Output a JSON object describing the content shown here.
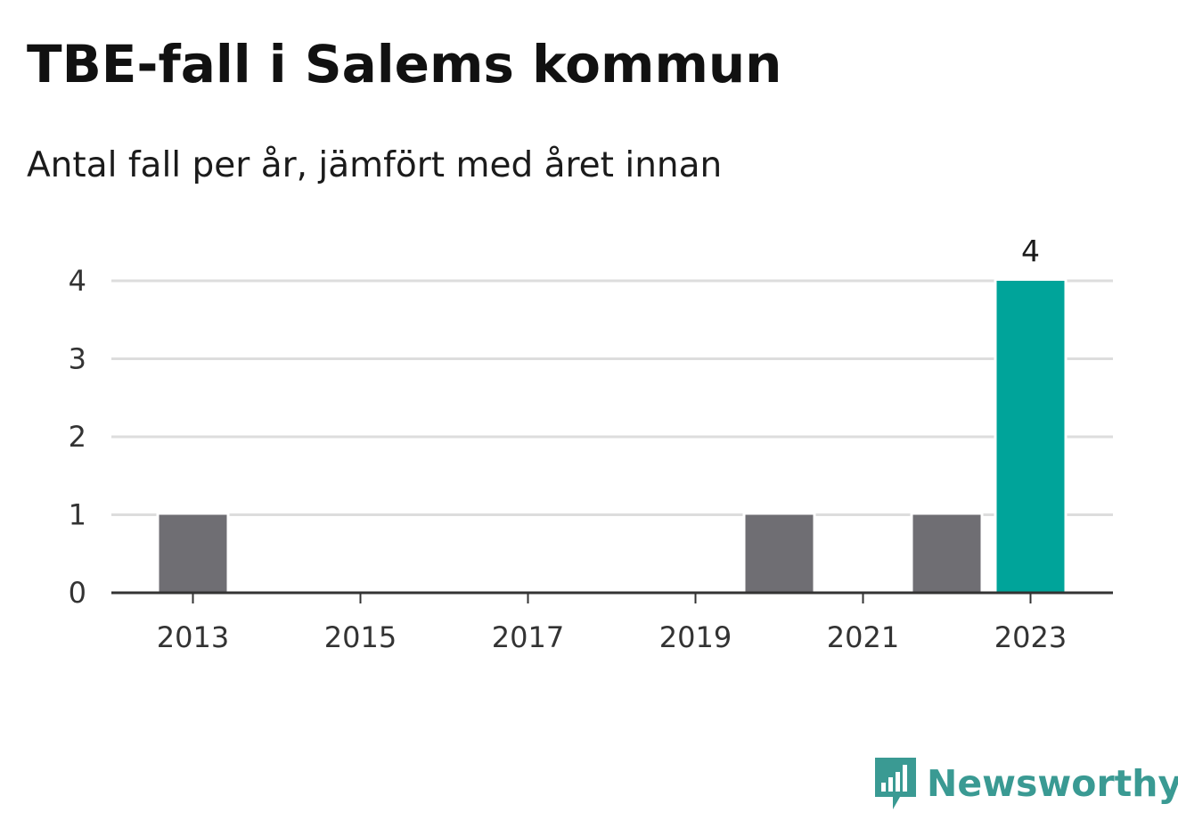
{
  "title": "TBE-fall i Salems kommun",
  "subtitle": "Antal fall per år, jämfört med året innan",
  "brand": {
    "name": "Newsworthy",
    "logo_icon": "newsworthy-bar-chart-speech-bubble-icon",
    "color": "#3a9a93"
  },
  "colors": {
    "bar_default": "#6f6e73",
    "bar_highlight": "#00a49a",
    "gridline": "#dddddd",
    "baseline": "#333333"
  },
  "chart_data": {
    "type": "bar",
    "title": "TBE-fall i Salems kommun",
    "subtitle": "Antal fall per år, jämfört med året innan",
    "categories": [
      "2013",
      "2014",
      "2015",
      "2016",
      "2017",
      "2018",
      "2019",
      "2020",
      "2021",
      "2022",
      "2023"
    ],
    "values": [
      1,
      0,
      0,
      0,
      0,
      0,
      0,
      1,
      0,
      1,
      4
    ],
    "highlight_category": "2023",
    "data_labels": [
      {
        "category": "2023",
        "value": "4"
      }
    ],
    "x_tick_labels": [
      "2013",
      "2015",
      "2017",
      "2019",
      "2021",
      "2023"
    ],
    "y_ticks": [
      "0",
      "1",
      "2",
      "3",
      "4"
    ],
    "ylim": [
      0,
      4
    ],
    "grid": true,
    "legend": "none",
    "xlabel": "",
    "ylabel": ""
  }
}
